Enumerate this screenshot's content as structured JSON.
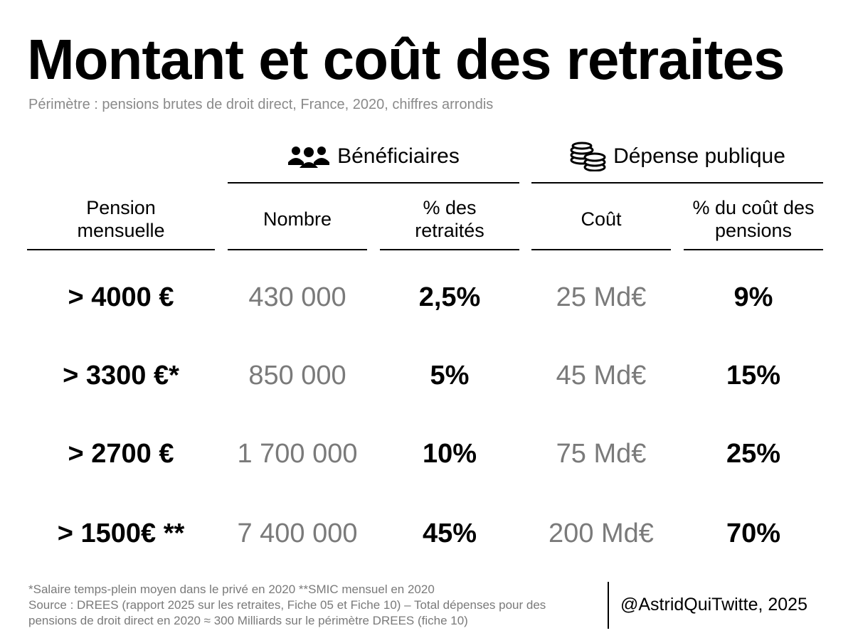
{
  "header": {
    "title": "Montant et coût des retraites",
    "subtitle": "Périmètre : pensions brutes de droit direct, France, 2020, chiffres arrondis"
  },
  "table": {
    "groups": [
      "Bénéficiaires",
      "Dépense publique"
    ],
    "columns": [
      "Pension mensuelle",
      "Nombre",
      "% des retraités",
      "Coût",
      "% du coût des pensions"
    ],
    "rows": [
      [
        "> 4000 €",
        "430 000",
        "2,5%",
        "25 Md€",
        "9%"
      ],
      [
        "> 3300 €*",
        "850 000",
        "5%",
        "45 Md€",
        "15%"
      ],
      [
        "> 2700 €",
        "1 700 000",
        "10%",
        "75 Md€",
        "25%"
      ],
      [
        "> 1500€ **",
        "7 400 000",
        "45%",
        "200 Md€",
        "70%"
      ]
    ]
  },
  "footer": {
    "notes": [
      "*Salaire temps-plein moyen dans le privé en 2020 **SMIC mensuel en 2020",
      "Source : DREES (rapport 2025 sur les retraites, Fiche 05 et Fiche 10) – Total dépenses pour des pensions de droit direct en 2020 ≈ 300 Milliards sur le périmètre DREES (fiche 10)"
    ],
    "credit": "@AstridQuiTwitte, 2025"
  }
}
